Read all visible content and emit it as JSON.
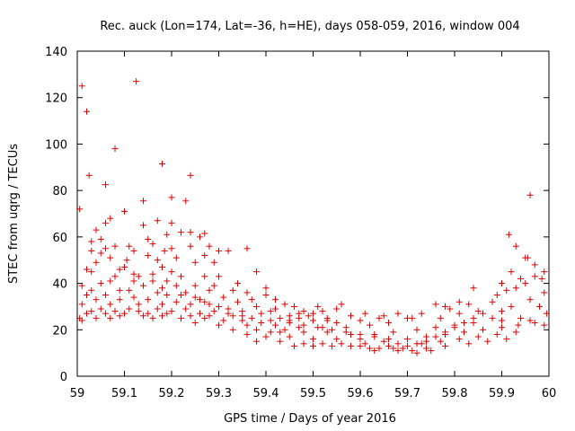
{
  "chart_data": {
    "type": "scatter",
    "title": "Rec. auck (Lon=174, Lat=-36, h=HE), days 058-059, 2016, window 004",
    "xlabel": "GPS time / Days of year 2016",
    "ylabel": "STEC from uqrg / TECUs",
    "xlim": [
      59,
      60
    ],
    "ylim": [
      0,
      140
    ],
    "x_ticks": [
      "59",
      "59.1",
      "59.2",
      "59.3",
      "59.4",
      "59.5",
      "59.6",
      "59.7",
      "59.8",
      "59.9",
      "60"
    ],
    "y_ticks": [
      "0",
      "20",
      "40",
      "60",
      "80",
      "100",
      "120",
      "140"
    ],
    "marker": "+",
    "color": "#e00000",
    "grid": false,
    "points": [
      [
        59.01,
        125
      ],
      [
        59.02,
        114
      ],
      [
        59.125,
        127
      ],
      [
        59.08,
        98
      ],
      [
        59.18,
        91.5
      ],
      [
        59.2,
        77
      ],
      [
        59.06,
        82.5
      ],
      [
        59.025,
        86.5
      ],
      [
        59.24,
        86.5
      ],
      [
        59.14,
        75.5
      ],
      [
        59.23,
        75.5
      ],
      [
        59.96,
        78
      ],
      [
        59.005,
        72
      ],
      [
        59.1,
        71
      ],
      [
        59.07,
        68
      ],
      [
        59.17,
        67
      ],
      [
        59.14,
        65
      ],
      [
        59.06,
        66
      ],
      [
        59.2,
        66
      ],
      [
        59.04,
        63
      ],
      [
        59.22,
        62
      ],
      [
        59.24,
        62
      ],
      [
        59.27,
        61.5
      ],
      [
        59.19,
        61
      ],
      [
        59.26,
        60
      ],
      [
        59.05,
        59
      ],
      [
        59.15,
        59
      ],
      [
        59.16,
        57
      ],
      [
        59.11,
        56
      ],
      [
        59.08,
        56
      ],
      [
        59.24,
        56
      ],
      [
        59.28,
        56
      ],
      [
        59.03,
        54
      ],
      [
        59.06,
        55
      ],
      [
        59.12,
        54
      ],
      [
        59.185,
        54
      ],
      [
        59.2,
        55
      ],
      [
        59.3,
        54
      ],
      [
        59.32,
        54
      ],
      [
        59.36,
        55
      ],
      [
        59.27,
        52
      ],
      [
        59.21,
        51
      ],
      [
        59.15,
        52
      ],
      [
        59.105,
        50
      ],
      [
        59.04,
        49
      ],
      [
        59.17,
        50
      ],
      [
        59.25,
        49
      ],
      [
        59.29,
        49
      ],
      [
        59.02,
        46
      ],
      [
        59.1,
        47
      ],
      [
        59.18,
        47
      ],
      [
        59.38,
        45
      ],
      [
        59.2,
        45
      ],
      [
        59.03,
        45
      ],
      [
        59.08,
        43
      ],
      [
        59.13,
        43
      ],
      [
        59.16,
        44
      ],
      [
        59.22,
        43
      ],
      [
        59.3,
        43
      ],
      [
        59.27,
        43
      ],
      [
        59.12,
        41
      ],
      [
        59.07,
        41
      ],
      [
        59.19,
        41
      ],
      [
        59.05,
        40
      ],
      [
        59.34,
        40
      ],
      [
        59.01,
        39
      ],
      [
        59.14,
        39
      ],
      [
        59.21,
        39
      ],
      [
        59.25,
        39
      ],
      [
        59.29,
        39
      ],
      [
        59.4,
        38
      ],
      [
        59.03,
        37
      ],
      [
        59.09,
        37
      ],
      [
        59.11,
        37
      ],
      [
        59.17,
        36
      ],
      [
        59.23,
        36
      ],
      [
        59.28,
        37
      ],
      [
        59.33,
        37
      ],
      [
        59.36,
        36
      ],
      [
        59.4,
        35
      ],
      [
        59.02,
        35
      ],
      [
        59.06,
        35
      ],
      [
        59.12,
        34
      ],
      [
        59.19,
        35
      ],
      [
        59.25,
        34
      ],
      [
        59.31,
        34
      ],
      [
        59.37,
        33
      ],
      [
        59.42,
        33
      ],
      [
        59.04,
        33
      ],
      [
        59.09,
        33
      ],
      [
        59.15,
        33
      ],
      [
        59.21,
        32
      ],
      [
        59.27,
        32
      ],
      [
        59.34,
        32
      ],
      [
        59.44,
        31
      ],
      [
        59.01,
        31
      ],
      [
        59.07,
        31
      ],
      [
        59.13,
        31
      ],
      [
        59.18,
        31
      ],
      [
        59.24,
        31
      ],
      [
        59.3,
        30
      ],
      [
        59.38,
        30
      ],
      [
        59.46,
        30
      ],
      [
        59.05,
        29
      ],
      [
        59.11,
        29
      ],
      [
        59.17,
        29
      ],
      [
        59.23,
        29
      ],
      [
        59.29,
        28
      ],
      [
        59.35,
        28
      ],
      [
        59.41,
        28
      ],
      [
        59.48,
        28
      ],
      [
        59.52,
        28
      ],
      [
        59.03,
        28
      ],
      [
        59.08,
        28
      ],
      [
        59.13,
        28
      ],
      [
        59.2,
        28
      ],
      [
        59.26,
        27
      ],
      [
        59.32,
        27
      ],
      [
        59.39,
        27
      ],
      [
        59.45,
        26
      ],
      [
        59.5,
        27
      ],
      [
        59.02,
        27
      ],
      [
        59.06,
        27
      ],
      [
        59.1,
        27
      ],
      [
        59.15,
        27
      ],
      [
        59.19,
        27
      ],
      [
        59.24,
        26
      ],
      [
        59.28,
        26
      ],
      [
        59.33,
        26
      ],
      [
        59.37,
        25
      ],
      [
        59.43,
        25
      ],
      [
        59.47,
        25
      ],
      [
        59.53,
        25
      ],
      [
        59.58,
        26
      ],
      [
        59.005,
        25
      ],
      [
        59.04,
        25
      ],
      [
        59.09,
        26
      ],
      [
        59.14,
        26
      ],
      [
        59.18,
        26
      ],
      [
        59.22,
        25
      ],
      [
        59.27,
        25
      ],
      [
        59.31,
        24
      ],
      [
        59.35,
        24
      ],
      [
        59.41,
        24
      ],
      [
        59.45,
        24
      ],
      [
        59.5,
        24
      ],
      [
        59.55,
        23
      ],
      [
        59.6,
        24
      ],
      [
        59.64,
        25
      ],
      [
        59.01,
        24
      ],
      [
        59.07,
        25
      ],
      [
        59.16,
        25
      ],
      [
        59.25,
        23
      ],
      [
        59.3,
        22
      ],
      [
        59.36,
        22
      ],
      [
        59.42,
        22
      ],
      [
        59.47,
        21
      ],
      [
        59.52,
        21
      ],
      [
        59.57,
        21
      ],
      [
        59.62,
        22
      ],
      [
        59.66,
        23
      ],
      [
        59.7,
        25
      ],
      [
        59.33,
        20
      ],
      [
        59.38,
        20
      ],
      [
        59.43,
        19
      ],
      [
        59.48,
        19
      ],
      [
        59.53,
        19
      ],
      [
        59.58,
        18
      ],
      [
        59.63,
        18
      ],
      [
        59.67,
        19
      ],
      [
        59.72,
        20
      ],
      [
        59.76,
        21
      ],
      [
        59.8,
        22
      ],
      [
        59.84,
        23
      ],
      [
        59.36,
        18
      ],
      [
        59.4,
        17
      ],
      [
        59.45,
        17
      ],
      [
        59.5,
        16
      ],
      [
        59.55,
        16
      ],
      [
        59.6,
        16
      ],
      [
        59.65,
        15
      ],
      [
        59.7,
        16
      ],
      [
        59.74,
        17
      ],
      [
        59.78,
        18
      ],
      [
        59.82,
        19
      ],
      [
        59.86,
        20
      ],
      [
        59.9,
        21
      ],
      [
        59.38,
        15
      ],
      [
        59.43,
        15
      ],
      [
        59.48,
        14
      ],
      [
        59.52,
        14
      ],
      [
        59.56,
        14
      ],
      [
        59.61,
        14
      ],
      [
        59.66,
        13
      ],
      [
        59.7,
        13
      ],
      [
        59.73,
        14
      ],
      [
        59.77,
        15
      ],
      [
        59.81,
        16
      ],
      [
        59.85,
        17
      ],
      [
        59.89,
        18
      ],
      [
        59.93,
        19
      ],
      [
        59.46,
        13
      ],
      [
        59.5,
        13
      ],
      [
        59.54,
        13
      ],
      [
        59.58,
        13
      ],
      [
        59.62,
        12
      ],
      [
        59.67,
        12
      ],
      [
        59.71,
        11
      ],
      [
        59.74,
        12
      ],
      [
        59.78,
        13
      ],
      [
        59.83,
        14
      ],
      [
        59.87,
        15
      ],
      [
        59.91,
        16
      ],
      [
        59.63,
        11
      ],
      [
        59.68,
        11
      ],
      [
        59.72,
        10
      ],
      [
        59.75,
        11
      ],
      [
        59.69,
        12
      ],
      [
        59.64,
        12
      ],
      [
        59.6,
        13
      ],
      [
        59.42,
        29
      ],
      [
        59.47,
        27
      ],
      [
        59.51,
        30
      ],
      [
        59.55,
        29
      ],
      [
        59.49,
        26
      ],
      [
        59.53,
        24
      ],
      [
        59.56,
        31
      ],
      [
        59.61,
        27
      ],
      [
        59.65,
        26
      ],
      [
        59.68,
        27
      ],
      [
        59.71,
        25
      ],
      [
        59.73,
        27
      ],
      [
        59.77,
        25
      ],
      [
        59.79,
        29
      ],
      [
        59.83,
        31
      ],
      [
        59.81,
        27
      ],
      [
        59.85,
        28
      ],
      [
        59.88,
        32
      ],
      [
        59.81,
        32
      ],
      [
        59.76,
        31
      ],
      [
        59.78,
        30
      ],
      [
        59.84,
        38
      ],
      [
        59.89,
        35
      ],
      [
        59.91,
        37
      ],
      [
        59.93,
        38
      ],
      [
        59.95,
        40
      ],
      [
        59.97,
        43
      ],
      [
        59.99,
        45
      ],
      [
        59.94,
        42
      ],
      [
        59.92,
        45
      ],
      [
        59.95,
        51
      ],
      [
        59.97,
        48
      ],
      [
        59.985,
        42
      ],
      [
        59.99,
        36
      ],
      [
        59.915,
        61
      ],
      [
        59.93,
        56
      ],
      [
        59.955,
        51
      ],
      [
        59.9,
        40
      ],
      [
        59.9,
        28
      ],
      [
        59.92,
        30
      ],
      [
        59.96,
        33
      ],
      [
        59.98,
        30
      ],
      [
        59.995,
        27
      ],
      [
        59.94,
        25
      ],
      [
        59.97,
        23
      ],
      [
        59.99,
        22
      ],
      [
        59.935,
        22
      ],
      [
        59.96,
        24
      ],
      [
        59.9,
        24
      ],
      [
        59.88,
        25
      ],
      [
        59.86,
        27
      ],
      [
        59.84,
        25
      ],
      [
        59.82,
        23
      ],
      [
        59.8,
        21
      ],
      [
        59.78,
        19
      ],
      [
        59.76,
        17
      ],
      [
        59.74,
        15
      ],
      [
        59.72,
        14
      ],
      [
        59.68,
        14
      ],
      [
        59.66,
        16
      ],
      [
        59.63,
        17
      ],
      [
        59.6,
        18
      ],
      [
        59.57,
        19
      ],
      [
        59.54,
        20
      ],
      [
        59.51,
        21
      ],
      [
        59.48,
        22
      ],
      [
        59.45,
        23
      ],
      [
        59.44,
        20
      ],
      [
        59.41,
        19
      ],
      [
        59.39,
        23
      ],
      [
        59.35,
        26
      ],
      [
        59.32,
        29
      ],
      [
        59.28,
        31
      ],
      [
        59.26,
        33
      ],
      [
        59.22,
        35
      ],
      [
        59.18,
        38
      ],
      [
        59.16,
        41
      ],
      [
        59.12,
        44
      ],
      [
        59.09,
        46
      ],
      [
        59.07,
        51
      ],
      [
        59.05,
        53
      ],
      [
        59.03,
        58
      ]
    ]
  }
}
